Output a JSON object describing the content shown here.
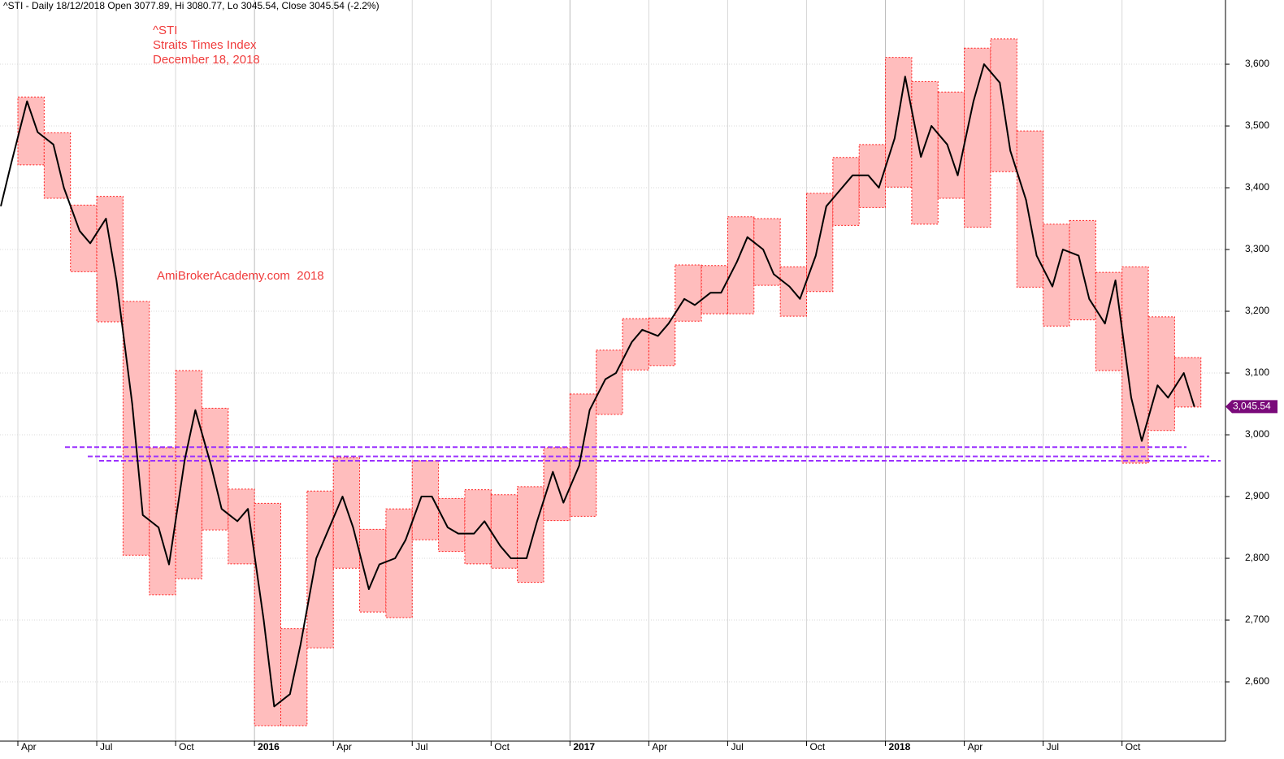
{
  "header": "^STI - Daily 18/12/2018 Open 3077.89, Hi 3080.77, Lo 3045.54, Close 3045.54 (-2.2%)",
  "chart_data": {
    "type": "price-range",
    "annotations": [
      "^STI",
      "Straits Times Index",
      "December 18, 2018",
      "AmiBrokerAcademy.com  2018"
    ],
    "categories": [
      null,
      "Apr",
      null,
      null,
      "Jul",
      null,
      null,
      "Oct",
      null,
      null,
      "2016",
      null,
      null,
      "Apr",
      null,
      null,
      "Jul",
      null,
      null,
      "Oct",
      null,
      null,
      "2017",
      null,
      null,
      "Apr",
      null,
      null,
      "Jul",
      null,
      null,
      "Oct",
      null,
      null,
      "2018",
      null,
      null,
      "Apr",
      null,
      null,
      "Jul",
      null,
      null,
      "Oct",
      null,
      null
    ],
    "range_high": [
      null,
      3547,
      3489,
      3372,
      3386,
      3216,
      2979,
      3104,
      3043,
      2912,
      2889,
      2686,
      2909,
      2963,
      2847,
      2880,
      2958,
      2897,
      2911,
      2903,
      2916,
      2979,
      3066,
      3137,
      3188,
      3189,
      3275,
      3274,
      3353,
      3350,
      3272,
      3391,
      3449,
      3470,
      3611,
      3572,
      3555,
      3626,
      3641,
      3492,
      3341,
      3347,
      3263,
      3272,
      3191,
      3125
    ],
    "range_low": [
      null,
      3437,
      3383,
      3264,
      3183,
      2805,
      2741,
      2767,
      2846,
      2791,
      2529,
      2529,
      2655,
      2784,
      2713,
      2704,
      2830,
      2811,
      2791,
      2784,
      2761,
      2861,
      2868,
      3033,
      3105,
      3112,
      3184,
      3196,
      3196,
      3242,
      3192,
      3232,
      3339,
      3368,
      3401,
      3341,
      3383,
      3336,
      3426,
      3239,
      3176,
      3186,
      3104,
      2954,
      3007,
      3045
    ],
    "close": [
      3370,
      3440,
      3540,
      3490,
      3470,
      3400,
      3330,
      3310,
      3350,
      3250,
      3050,
      2870,
      2850,
      2790,
      2960,
      3040,
      2950,
      2880,
      2860,
      2880,
      2700,
      2560,
      2580,
      2660,
      2800,
      2840,
      2900,
      2850,
      2750,
      2790,
      2800,
      2830,
      2900,
      2900,
      2850,
      2840,
      2840,
      2860,
      2820,
      2800,
      2800,
      2860,
      2940,
      2890,
      2950,
      3040,
      3090,
      3100,
      3150,
      3170,
      3160,
      3180,
      3220,
      3210,
      3230,
      3230,
      3280,
      3320,
      3300,
      3260,
      3240,
      3220,
      3290,
      3370,
      3400,
      3420,
      3420,
      3400,
      3480,
      3580,
      3450,
      3500,
      3470,
      3420,
      3540,
      3600,
      3570,
      3460,
      3380,
      3290,
      3240,
      3300,
      3290,
      3220,
      3180,
      3250,
      3060,
      2990,
      3080,
      3060,
      3100,
      3045.54
    ],
    "range_color": "#ffbdbd",
    "range_edge_color": "#ff2020",
    "line_color": "#000000",
    "levels": [
      2980,
      2965,
      2958
    ],
    "level_color": "#9b30ff",
    "last": {
      "value": 3045.54,
      "label": "3,045.54"
    },
    "marker_color": "#7a0a7a",
    "ylim": [
      2504,
      3704
    ],
    "yticks": [
      {
        "value": 2600,
        "label": "2,600"
      },
      {
        "value": 2700,
        "label": "2,700"
      },
      {
        "value": 2800,
        "label": "2,800"
      },
      {
        "value": 2900,
        "label": "2,900"
      },
      {
        "value": 3000,
        "label": "3,000"
      },
      {
        "value": 3100,
        "label": "3,100"
      },
      {
        "value": 3200,
        "label": "3,200"
      },
      {
        "value": 3300,
        "label": "3,300"
      },
      {
        "value": 3400,
        "label": "3,400"
      },
      {
        "value": 3500,
        "label": "3,500"
      },
      {
        "value": 3600,
        "label": "3,600"
      }
    ],
    "grid": true
  }
}
